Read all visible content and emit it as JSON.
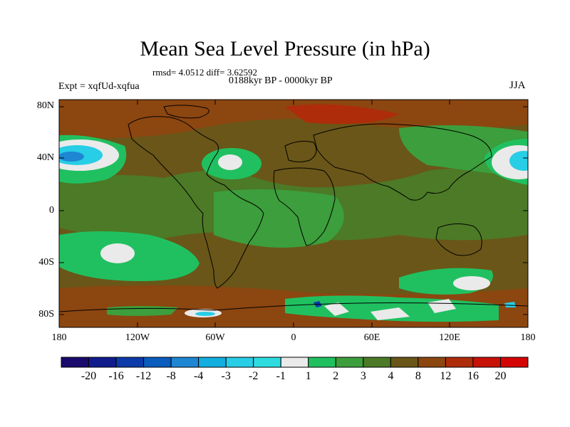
{
  "title": "Mean Sea Level Pressure (in hPa)",
  "stats_line": "rmsd= 4.0512 diff= 3.62592",
  "period": "0188kyr BP - 0000kyr BP",
  "experiment": "Expt = xqfUd-xqfua",
  "season": "JJA",
  "y_ticks": [
    "80N",
    "40N",
    "0",
    "40S",
    "80S"
  ],
  "x_ticks": [
    "180",
    "120W",
    "60W",
    "0",
    "60E",
    "120E",
    "180"
  ],
  "colorbar": {
    "labels": [
      "-20",
      "-16",
      "-12",
      "-8",
      "-4",
      "-3",
      "-2",
      "-1",
      "1",
      "2",
      "3",
      "4",
      "8",
      "12",
      "16",
      "20"
    ],
    "colors": [
      "#1a0a6e",
      "#101c8c",
      "#0c3aa8",
      "#0a5cbe",
      "#1e86d2",
      "#12aee0",
      "#28cde6",
      "#2edce0",
      "#eaeaea",
      "#20c060",
      "#3c9e3c",
      "#4c7a26",
      "#6a5618",
      "#8c4610",
      "#ae2c0a",
      "#c81208",
      "#d40404"
    ]
  }
}
